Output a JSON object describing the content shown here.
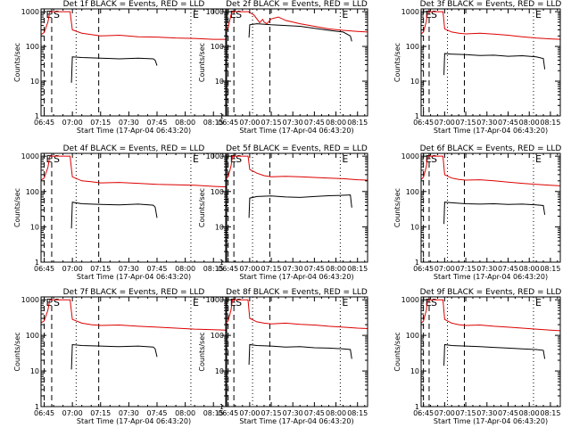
{
  "figure": {
    "type": "grid-3x3",
    "common": {
      "ylabel": "Counts/sec",
      "xlabel": "Start Time (17-Apr-04 06:43:20)",
      "x_tick_labels": [
        "06:45",
        "07:00",
        "07:15",
        "07:30",
        "07:45",
        "08:00",
        "08:15"
      ],
      "y_tick_labels": [
        "1",
        "10",
        "100",
        "1000"
      ],
      "y_scale": "log",
      "colors": {
        "events": "#000000",
        "lld": "#dd0000",
        "frame": "#000000",
        "marker": "#000000"
      },
      "markers": [
        {
          "label": "E",
          "time": "06:45",
          "style": "dash"
        },
        {
          "label": "S",
          "time": "06:49",
          "style": "dash"
        },
        {
          "label": "",
          "time": "07:02",
          "style": "dot"
        },
        {
          "label": "",
          "time": "07:14",
          "style": "dash"
        },
        {
          "label": "E",
          "time": "08:03",
          "style": "dot"
        }
      ]
    }
  },
  "chart_data": [
    {
      "type": "line",
      "title": "Det 1f BLACK = Events, RED = LLD",
      "x_unit": "minutes after 06:45",
      "xlim": [
        -1.67,
        97
      ],
      "ylim": [
        1,
        1200
      ],
      "series": [
        {
          "name": "Events",
          "color": "#000000",
          "x": [
            14.5,
            15,
            20,
            30,
            40,
            50,
            58,
            59,
            60
          ],
          "y": [
            9,
            50,
            48,
            46,
            44,
            46,
            44,
            40,
            28
          ]
        },
        {
          "name": "LLD",
          "color": "#dd0000",
          "x": [
            -1.67,
            0,
            2,
            3,
            3.8,
            4,
            13.8,
            14,
            15,
            20,
            25,
            30,
            40,
            50,
            60,
            70,
            80,
            90,
            97
          ],
          "y": [
            220,
            250,
            500,
            1000,
            1000,
            1000,
            1000,
            800,
            300,
            240,
            220,
            200,
            210,
            190,
            185,
            175,
            170,
            160,
            160
          ]
        }
      ]
    },
    {
      "type": "line",
      "title": "Det 2f BLACK = Events, RED = LLD",
      "x_unit": "minutes after 06:45",
      "xlim": [
        -1.67,
        97
      ],
      "ylim": [
        1,
        1200
      ],
      "series": [
        {
          "name": "Events",
          "color": "#000000",
          "x": [
            14.5,
            15,
            20,
            30,
            40,
            50,
            60,
            70,
            80,
            85,
            86
          ],
          "y": [
            180,
            420,
            450,
            420,
            400,
            380,
            330,
            290,
            260,
            200,
            140
          ]
        },
        {
          "name": "LLD",
          "color": "#dd0000",
          "x": [
            -1.67,
            0,
            2,
            3,
            3.8,
            4,
            13.8,
            14,
            15,
            18,
            20,
            22,
            24,
            25,
            27,
            30,
            35,
            40,
            50,
            60,
            70,
            80,
            90,
            97
          ],
          "y": [
            300,
            350,
            800,
            1000,
            1000,
            1000,
            1000,
            1000,
            950,
            800,
            620,
            480,
            600,
            500,
            450,
            620,
            700,
            560,
            450,
            380,
            320,
            290,
            270,
            260
          ]
        }
      ]
    },
    {
      "type": "line",
      "title": "Det 3f BLACK = Events, RED = LLD",
      "x_unit": "minutes after 06:45",
      "xlim": [
        -1.67,
        97
      ],
      "ylim": [
        1,
        1200
      ],
      "series": [
        {
          "name": "Events",
          "color": "#000000",
          "x": [
            14.5,
            15,
            20,
            30,
            40,
            50,
            60,
            70,
            80,
            85,
            86
          ],
          "y": [
            15,
            62,
            60,
            58,
            55,
            56,
            52,
            54,
            50,
            45,
            22
          ]
        },
        {
          "name": "LLD",
          "color": "#dd0000",
          "x": [
            -1.67,
            0,
            2,
            3,
            3.8,
            4,
            13.8,
            14,
            15,
            20,
            25,
            30,
            40,
            50,
            60,
            70,
            80,
            90,
            97
          ],
          "y": [
            230,
            260,
            520,
            1000,
            1000,
            1000,
            1000,
            850,
            320,
            260,
            240,
            230,
            240,
            225,
            210,
            190,
            175,
            165,
            160
          ]
        }
      ]
    },
    {
      "type": "line",
      "title": "Det 4f BLACK = Events, RED = LLD",
      "x_unit": "minutes after 06:45",
      "xlim": [
        -1.67,
        97
      ],
      "ylim": [
        1,
        1200
      ],
      "series": [
        {
          "name": "Events",
          "color": "#000000",
          "x": [
            14.5,
            15,
            20,
            30,
            40,
            50,
            58,
            59,
            60
          ],
          "y": [
            9,
            50,
            45,
            43,
            42,
            44,
            41,
            36,
            18
          ]
        },
        {
          "name": "LLD",
          "color": "#dd0000",
          "x": [
            -1.67,
            0,
            2,
            3,
            3.8,
            4,
            13.8,
            14,
            15,
            20,
            25,
            30,
            40,
            50,
            60,
            70,
            80,
            90,
            97
          ],
          "y": [
            210,
            240,
            480,
            1000,
            1000,
            1000,
            1000,
            780,
            260,
            200,
            190,
            175,
            180,
            170,
            160,
            155,
            150,
            140,
            135
          ]
        }
      ]
    },
    {
      "type": "line",
      "title": "Det 5f BLACK = Events, RED = LLD",
      "x_unit": "minutes after 06:45",
      "xlim": [
        -1.67,
        97
      ],
      "ylim": [
        1,
        1200
      ],
      "series": [
        {
          "name": "Events",
          "color": "#000000",
          "x": [
            14.5,
            15,
            20,
            30,
            40,
            50,
            60,
            70,
            80,
            85,
            86
          ],
          "y": [
            18,
            65,
            72,
            75,
            70,
            68,
            72,
            76,
            78,
            80,
            35
          ]
        },
        {
          "name": "LLD",
          "color": "#dd0000",
          "x": [
            -1.67,
            0,
            2,
            3,
            3.8,
            4,
            13.8,
            14,
            15,
            20,
            25,
            30,
            40,
            50,
            60,
            70,
            80,
            90,
            97
          ],
          "y": [
            230,
            260,
            520,
            1000,
            1000,
            1000,
            1000,
            900,
            420,
            330,
            280,
            260,
            270,
            260,
            250,
            240,
            230,
            215,
            210
          ]
        }
      ]
    },
    {
      "type": "line",
      "title": "Det 6f BLACK = Events, RED = LLD",
      "x_unit": "minutes after 06:45",
      "xlim": [
        -1.67,
        97
      ],
      "ylim": [
        1,
        1200
      ],
      "series": [
        {
          "name": "Events",
          "color": "#000000",
          "x": [
            14.5,
            15,
            20,
            30,
            40,
            50,
            60,
            70,
            80,
            85,
            86
          ],
          "y": [
            12,
            50,
            48,
            45,
            44,
            45,
            43,
            44,
            42,
            40,
            22
          ]
        },
        {
          "name": "LLD",
          "color": "#dd0000",
          "x": [
            -1.67,
            0,
            2,
            3,
            3.8,
            4,
            13.8,
            14,
            15,
            20,
            25,
            30,
            40,
            50,
            60,
            70,
            80,
            90,
            97
          ],
          "y": [
            220,
            250,
            500,
            1000,
            1000,
            1000,
            1000,
            820,
            300,
            240,
            220,
            210,
            215,
            200,
            185,
            170,
            160,
            150,
            145
          ]
        }
      ]
    },
    {
      "type": "line",
      "title": "Det 7f BLACK = Events, RED = LLD",
      "x_unit": "minutes after 06:45",
      "xlim": [
        -1.67,
        97
      ],
      "ylim": [
        1,
        1200
      ],
      "series": [
        {
          "name": "Events",
          "color": "#000000",
          "x": [
            14.5,
            15,
            20,
            30,
            40,
            50,
            58,
            59,
            60
          ],
          "y": [
            11,
            55,
            52,
            50,
            48,
            50,
            47,
            42,
            25
          ]
        },
        {
          "name": "LLD",
          "color": "#dd0000",
          "x": [
            -1.67,
            0,
            2,
            3,
            3.8,
            4,
            13.8,
            14,
            15,
            20,
            25,
            30,
            40,
            50,
            60,
            70,
            80,
            90,
            97
          ],
          "y": [
            225,
            255,
            510,
            1000,
            1000,
            1000,
            1000,
            800,
            280,
            220,
            200,
            190,
            195,
            180,
            170,
            160,
            150,
            145,
            140
          ]
        }
      ]
    },
    {
      "type": "line",
      "title": "Det 8f BLACK = Events, RED = LLD",
      "x_unit": "minutes after 06:45",
      "xlim": [
        -1.67,
        97
      ],
      "ylim": [
        1,
        1200
      ],
      "series": [
        {
          "name": "Events",
          "color": "#000000",
          "x": [
            14.5,
            15,
            20,
            30,
            40,
            50,
            60,
            70,
            80,
            85,
            86
          ],
          "y": [
            15,
            55,
            52,
            50,
            47,
            48,
            45,
            44,
            42,
            40,
            22
          ]
        },
        {
          "name": "LLD",
          "color": "#dd0000",
          "x": [
            -1.67,
            0,
            2,
            3,
            3.8,
            4,
            13.8,
            14,
            15,
            20,
            25,
            30,
            40,
            50,
            60,
            70,
            80,
            90,
            97
          ],
          "y": [
            225,
            255,
            510,
            1000,
            1000,
            1000,
            1000,
            820,
            300,
            240,
            220,
            210,
            220,
            205,
            195,
            180,
            170,
            160,
            155
          ]
        }
      ]
    },
    {
      "type": "line",
      "title": "Det 9f BLACK = Events, RED = LLD",
      "x_unit": "minutes after 06:45",
      "xlim": [
        -1.67,
        97
      ],
      "ylim": [
        1,
        1200
      ],
      "series": [
        {
          "name": "Events",
          "color": "#000000",
          "x": [
            14.5,
            15,
            20,
            30,
            40,
            50,
            60,
            70,
            80,
            85,
            86
          ],
          "y": [
            14,
            55,
            52,
            50,
            48,
            46,
            44,
            42,
            40,
            38,
            22
          ]
        },
        {
          "name": "LLD",
          "color": "#dd0000",
          "x": [
            -1.67,
            0,
            2,
            3,
            3.8,
            4,
            13.8,
            14,
            15,
            20,
            25,
            30,
            40,
            50,
            60,
            70,
            80,
            90,
            97
          ],
          "y": [
            220,
            250,
            500,
            1000,
            1000,
            1000,
            1000,
            810,
            280,
            220,
            200,
            190,
            195,
            180,
            170,
            160,
            150,
            140,
            135
          ]
        }
      ]
    }
  ]
}
